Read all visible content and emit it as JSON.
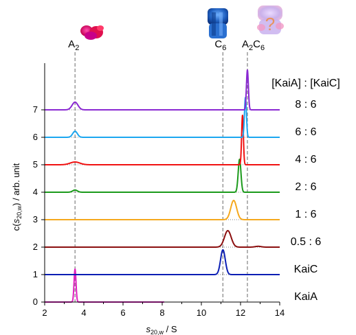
{
  "chart_data": {
    "type": "line",
    "xlabel": {
      "main": "s",
      "sub": "20,w",
      "suffix": " / S"
    },
    "ylabel": {
      "prefix": "c(",
      "main": "s",
      "sub": "20,w",
      "suffix": ") / arb. unit"
    },
    "xlim": [
      2,
      14
    ],
    "ylim": [
      0,
      8.5
    ],
    "xticks": [
      "2",
      "4",
      "6",
      "8",
      "10",
      "12",
      "14"
    ],
    "yticks": [
      "0",
      "1",
      "2",
      "3",
      "4",
      "5",
      "6",
      "7"
    ],
    "legend_header": "[KaiA] : [KaiC]",
    "reference_lines": [
      {
        "label_main": "A",
        "label_sub": "2",
        "label_sub2": "",
        "x": 3.55,
        "icon": "kaia-dimer-structure-icon",
        "color": "#d81b7a"
      },
      {
        "label_main": "C",
        "label_sub": "6",
        "label_sub2": "",
        "x": 11.1,
        "icon": "kaic-hexamer-structure-icon",
        "color": "#1f5fbf"
      },
      {
        "label_main": "A",
        "label_sub": "2",
        "label_sub2": "C",
        "label_sub3": "6",
        "x": 12.35,
        "icon": "unknown-complex-structure-icon",
        "question": "?",
        "color": "#e89b70"
      }
    ],
    "series": [
      {
        "name": "KaiA",
        "ratio_label": "KaiA",
        "baseline": 0,
        "color": "#e020c0",
        "dotted_to": 8.1,
        "peaks": [
          {
            "x": 3.55,
            "height": 1.2,
            "width": 0.05
          }
        ]
      },
      {
        "name": "KaiC",
        "ratio_label": "KaiC",
        "baseline": 1,
        "color": "#0a1eb4",
        "peaks": [
          {
            "x": 11.1,
            "height": 0.9,
            "width": 0.12
          }
        ]
      },
      {
        "name": "0.5 : 6",
        "ratio_label": "0.5 : 6",
        "baseline": 2,
        "color": "#8b0e0e",
        "peaks": [
          {
            "x": 11.35,
            "height": 0.6,
            "width": 0.17
          },
          {
            "x": 12.9,
            "height": 0.03,
            "width": 0.15
          }
        ]
      },
      {
        "name": "1 : 6",
        "ratio_label": "1 : 6",
        "baseline": 3,
        "color": "#f5a81d",
        "peaks": [
          {
            "x": 11.65,
            "height": 0.7,
            "width": 0.15
          }
        ]
      },
      {
        "name": "2 : 6",
        "ratio_label": "2 : 6",
        "baseline": 4,
        "color": "#1a9a1a",
        "peaks": [
          {
            "x": 3.55,
            "height": 0.08,
            "width": 0.12
          },
          {
            "x": 11.95,
            "height": 1.2,
            "width": 0.07
          }
        ]
      },
      {
        "name": "4 : 6",
        "ratio_label": "4 : 6",
        "baseline": 5,
        "color": "#f01010",
        "peaks": [
          {
            "x": 3.55,
            "height": 0.1,
            "width": 0.25
          },
          {
            "x": 12.1,
            "height": 1.8,
            "width": 0.045
          }
        ]
      },
      {
        "name": "6 : 6",
        "ratio_label": "6 : 6",
        "baseline": 6,
        "color": "#1aa6f0",
        "peaks": [
          {
            "x": 3.55,
            "height": 0.22,
            "width": 0.12
          },
          {
            "x": 12.25,
            "height": 1.45,
            "width": 0.05
          }
        ]
      },
      {
        "name": "8 : 6",
        "ratio_label": "8 : 6",
        "baseline": 7,
        "color": "#8a28d2",
        "peaks": [
          {
            "x": 3.55,
            "height": 0.28,
            "width": 0.15
          },
          {
            "x": 12.35,
            "height": 1.45,
            "width": 0.05
          }
        ]
      }
    ]
  }
}
